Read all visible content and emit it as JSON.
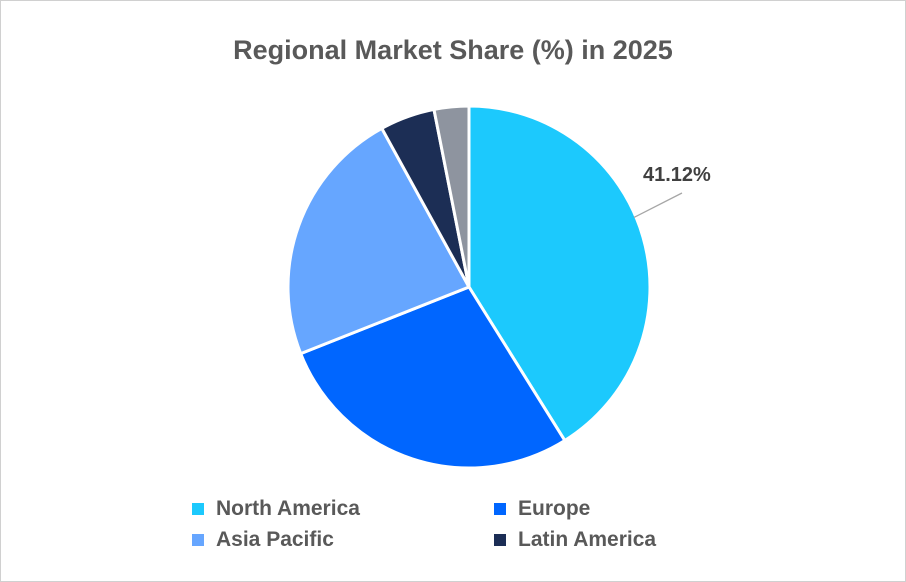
{
  "chart_data": {
    "type": "pie",
    "title": "Regional Market Share (%) in 2025",
    "slices": [
      {
        "name": "North America",
        "value": 41.12,
        "color": "#1CC9FD",
        "label": "41.12%"
      },
      {
        "name": "Europe",
        "value": 27.88,
        "color": "#0066FF"
      },
      {
        "name": "Asia Pacific",
        "value": 23.0,
        "color": "#66A6FF"
      },
      {
        "name": "Latin America",
        "value": 4.9,
        "color": "#1C2E55"
      },
      {
        "name": "",
        "value": 3.1,
        "color": "#8E949F"
      }
    ],
    "legend": [
      "North America",
      "Europe",
      "Asia Pacific",
      "Latin America"
    ],
    "legend_position": "bottom",
    "start_angle": "top, clockwise"
  }
}
